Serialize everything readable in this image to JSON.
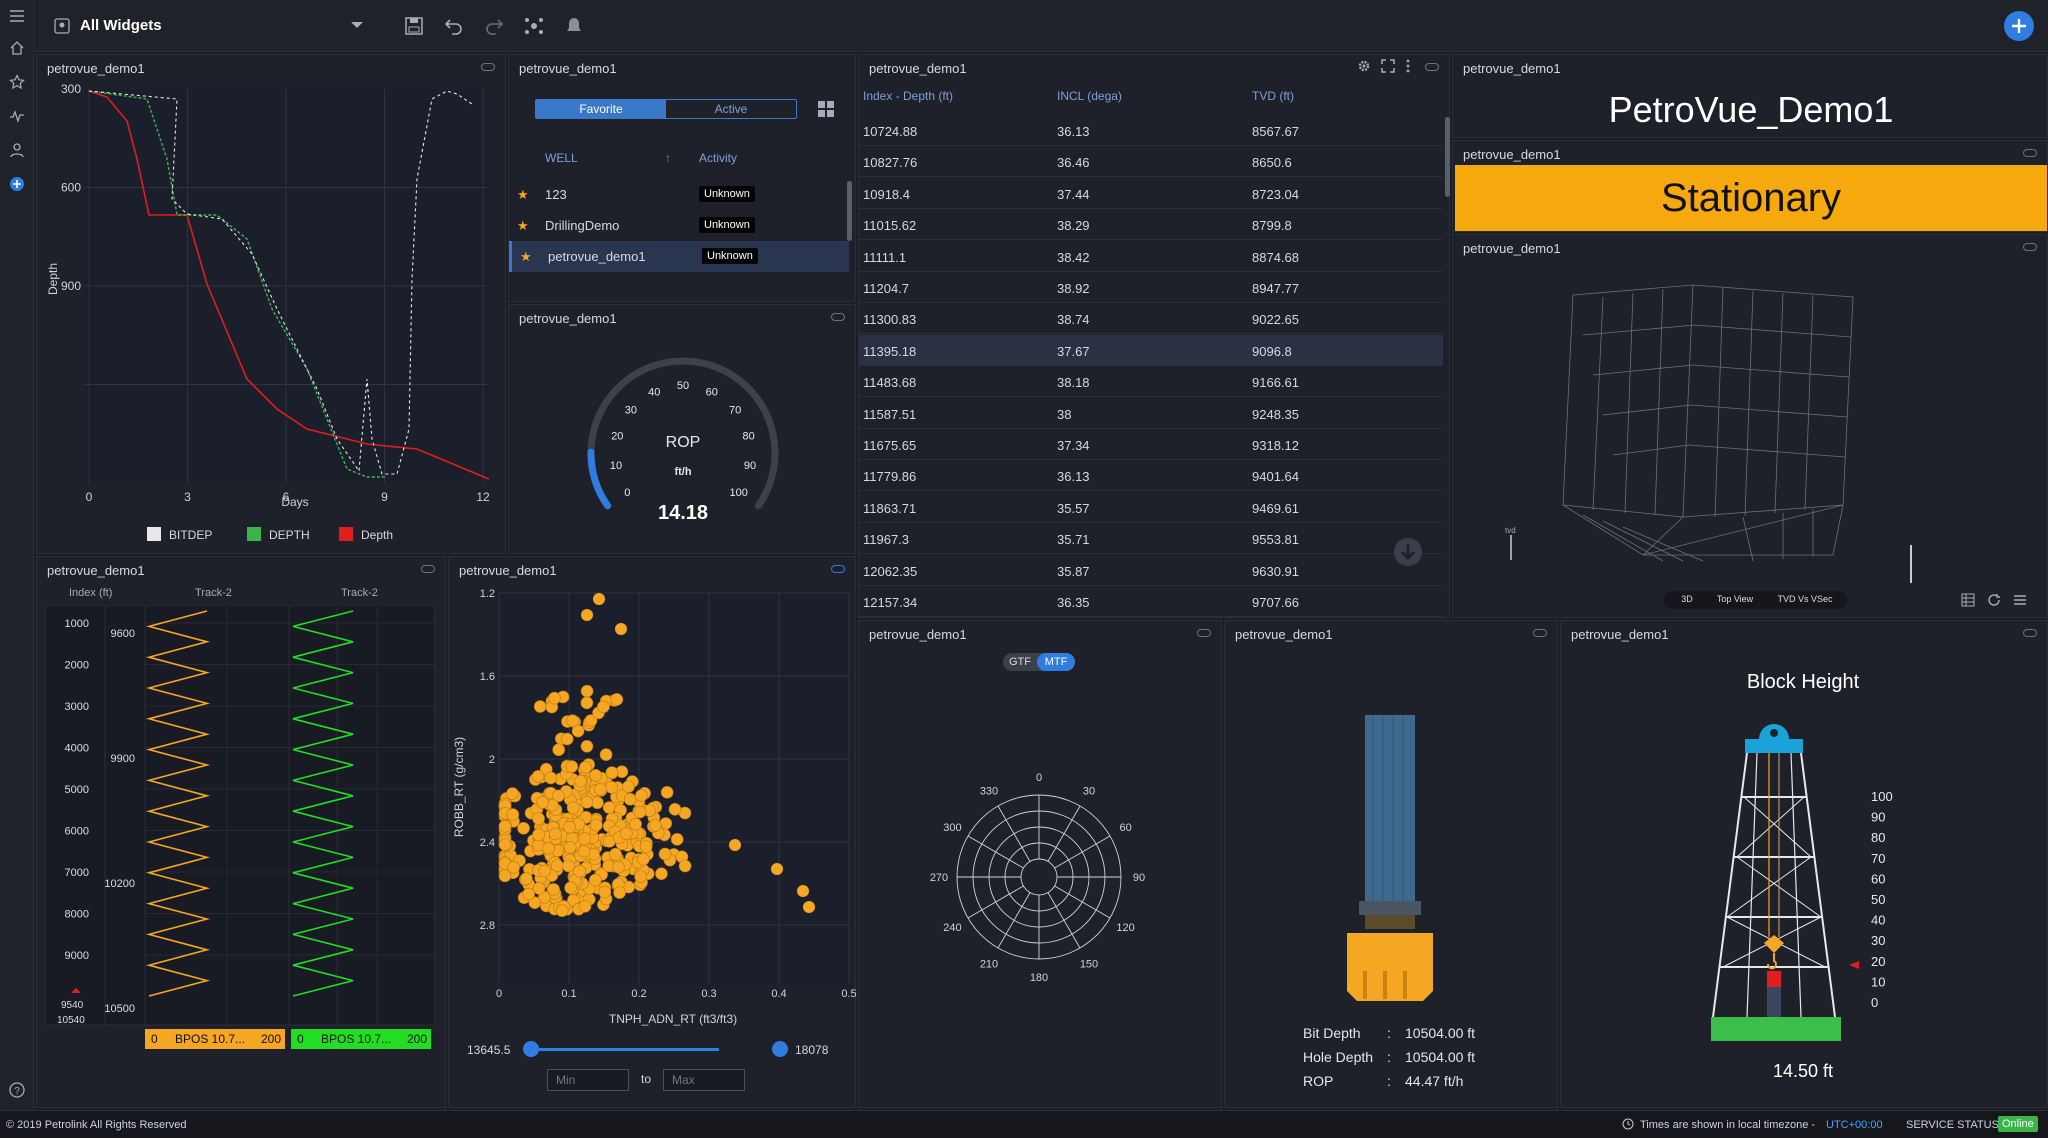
{
  "topbar": {
    "dashboard_title": "All Widgets"
  },
  "footer": {
    "copyright": "© 2019 Petrolink All Rights Reserved",
    "tz_text": "Times are shown in local timezone -",
    "tz_value": "UTC+00:00",
    "service_label": "SERVICE STATUS",
    "service_value": "Online"
  },
  "panel_names": {
    "p1": "petrovue_demo1",
    "p2": "petrovue_demo1",
    "p3": "petrovue_demo1",
    "p4": "petrovue_demo1",
    "p5": "petrovue_demo1",
    "p6": "petrovue_demo1",
    "p7": "petrovue_demo1",
    "p8": "petrovue_demo1",
    "p9": "petrovue_demo1",
    "p10": "petrovue_demo1",
    "p11": "petrovue_demo1",
    "p12": "petrovue_demo1"
  },
  "depth_chart": {
    "ylabel": "Depth",
    "xlabel": "Days",
    "yticks": [
      "300",
      "600",
      "900"
    ],
    "xticks": [
      "0",
      "3",
      "6",
      "9",
      "12"
    ],
    "legend": [
      {
        "label": "BITDEP",
        "color": "#e8e8e8"
      },
      {
        "label": "DEPTH",
        "color": "#3bb54a"
      },
      {
        "label": "Depth",
        "color": "#e01e1e"
      }
    ]
  },
  "wells": {
    "tab_favorite": "Favorite",
    "tab_active": "Active",
    "col_well": "WELL",
    "sort_icon": "↑",
    "col_activity": "Activity",
    "rows": [
      {
        "name": "123",
        "activity": "Unknown"
      },
      {
        "name": "DrillingDemo",
        "activity": "Unknown"
      },
      {
        "name": "petrovue_demo1",
        "activity": "Unknown"
      }
    ]
  },
  "gauge": {
    "label": "ROP",
    "unit": "ft/h",
    "value": "14.18",
    "value_num": 14.18,
    "max": 100,
    "ticks": [
      "0",
      "10",
      "20",
      "30",
      "40",
      "50",
      "60",
      "70",
      "80",
      "90",
      "100"
    ]
  },
  "survey": {
    "columns": [
      "Index - Depth (ft)",
      "INCL (dega)",
      "TVD (ft)"
    ],
    "rows": [
      [
        "10724.88",
        "36.13",
        "8567.67"
      ],
      [
        "10827.76",
        "36.46",
        "8650.6"
      ],
      [
        "10918.4",
        "37.44",
        "8723.04"
      ],
      [
        "11015.62",
        "38.29",
        "8799.8"
      ],
      [
        "11111.1",
        "38.42",
        "8874.68"
      ],
      [
        "11204.7",
        "38.92",
        "8947.77"
      ],
      [
        "11300.83",
        "38.74",
        "9022.65"
      ],
      [
        "11395.18",
        "37.67",
        "9096.8"
      ],
      [
        "11483.68",
        "38.18",
        "9166.61"
      ],
      [
        "11587.51",
        "38",
        "9248.35"
      ],
      [
        "11675.65",
        "37.34",
        "9318.12"
      ],
      [
        "11779.86",
        "36.13",
        "9401.64"
      ],
      [
        "11863.71",
        "35.57",
        "9469.61"
      ],
      [
        "11967.3",
        "35.71",
        "9553.81"
      ],
      [
        "12062.35",
        "35.87",
        "9630.91"
      ],
      [
        "12157.34",
        "36.35",
        "9707.66"
      ]
    ]
  },
  "well_title": {
    "text": "PetroVue_Demo1"
  },
  "status": {
    "text": "Stationary",
    "color": "#f5a90f"
  },
  "view3d": {
    "btn_3d": "3D",
    "btn_top": "Top View",
    "btn_tvd": "TVD Vs VSec",
    "axis_label": "tvd"
  },
  "tracks": {
    "col_index": "Index (ft)",
    "col_t2a": "Track-2",
    "col_t2b": "Track-2",
    "index_ticks": [
      "1000",
      "2000",
      "3000",
      "4000",
      "5000",
      "6000",
      "7000",
      "8000",
      "9000"
    ],
    "mid_ticks": [
      "9600",
      "9900",
      "10200",
      "10500"
    ],
    "marker": "9540",
    "bottom_index": "10540",
    "footer_a": {
      "min": "0",
      "label": "BPOS 10.7...",
      "max": "200"
    },
    "footer_b": {
      "min": "0",
      "label": "BPOS 10.7...",
      "max": "200"
    }
  },
  "crossplot": {
    "ylabel": "ROBB_RT (g/cm3)",
    "xlabel": "TNPH_ADN_RT (ft3/ft3)",
    "yticks": [
      "1.2",
      "1.6",
      "2",
      "2.4",
      "2.8"
    ],
    "xticks": [
      "0",
      "0.1",
      "0.2",
      "0.3",
      "0.4",
      "0.5"
    ],
    "range_min": "13645.5",
    "range_max": "18078",
    "min_placeholder": "Min",
    "to_label": "to",
    "max_placeholder": "Max"
  },
  "polar": {
    "btn_gtf": "GTF",
    "btn_mtf": "MTF",
    "angles": [
      "0",
      "30",
      "60",
      "90",
      "120",
      "150",
      "180",
      "210",
      "240",
      "270",
      "300",
      "330"
    ]
  },
  "bitpanel": {
    "bit_depth_label": "Bit Depth",
    "bit_depth_value": "10504.00 ft",
    "hole_depth_label": "Hole Depth",
    "hole_depth_value": "10504.00 ft",
    "rop_label": "ROP",
    "rop_value": "44.47 ft/h",
    "sep": ":"
  },
  "block": {
    "title": "Block Height",
    "value": "14.50 ft",
    "scale": [
      "100",
      "90",
      "80",
      "70",
      "60",
      "50",
      "40",
      "30",
      "20",
      "10",
      "0"
    ]
  }
}
